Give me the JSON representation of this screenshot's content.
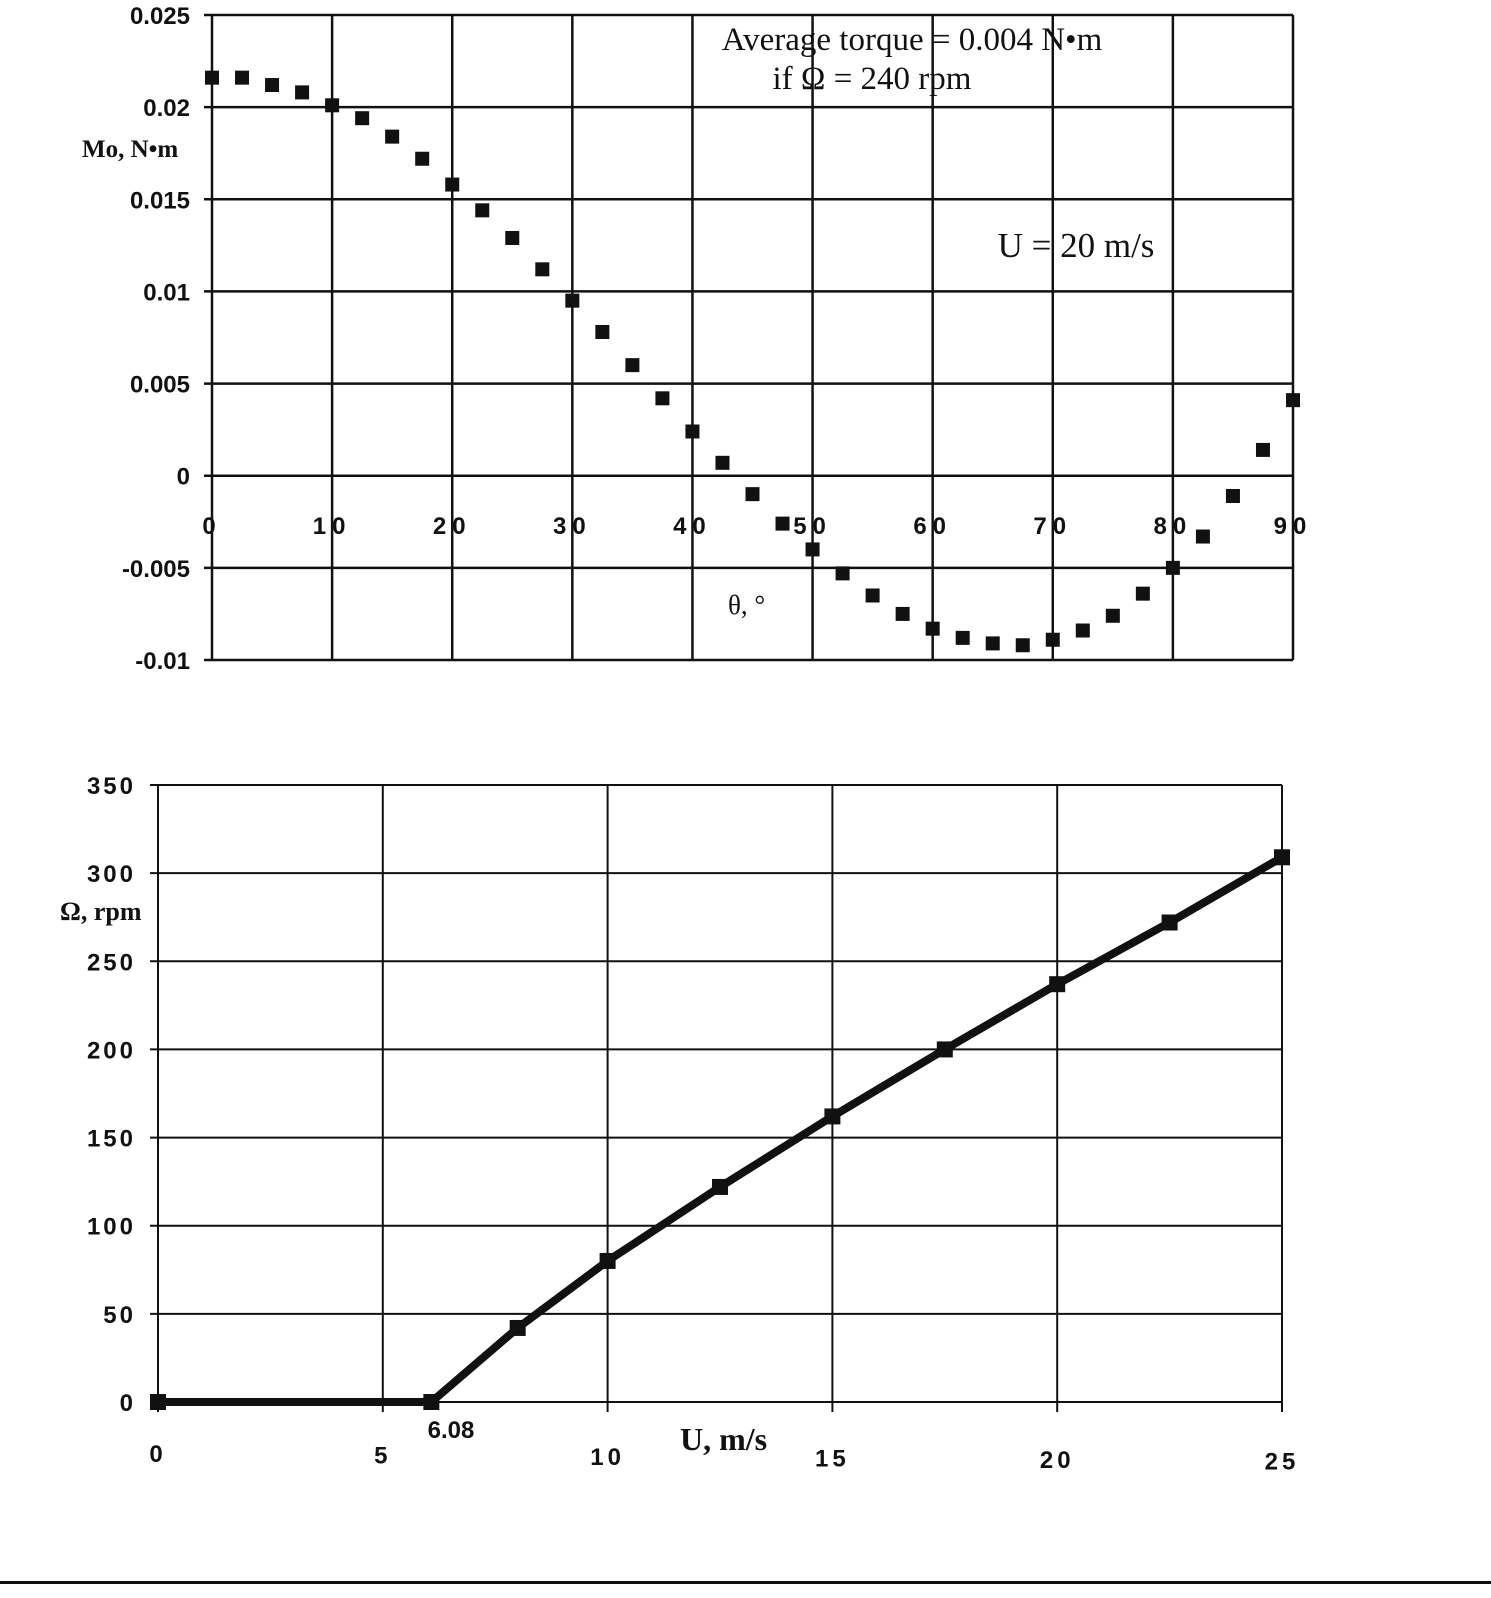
{
  "chart_data": [
    {
      "id": "torque",
      "type": "scatter",
      "title": "",
      "xlabel": "θ, °",
      "ylabel": "Mo, N•m",
      "xlim": [
        0,
        90
      ],
      "ylim": [
        -0.01,
        0.025
      ],
      "xticks": [
        0,
        10,
        20,
        30,
        40,
        50,
        60,
        70,
        80,
        90
      ],
      "yticks": [
        0.025,
        0.02,
        0.015,
        0.01,
        0.005,
        0,
        -0.005,
        -0.01
      ],
      "ytick_labels": [
        "0.025",
        "0.02",
        "0.015",
        "0.01",
        "0.005",
        "0",
        "-0.005",
        "-0.01"
      ],
      "grid": true,
      "marker": "square",
      "annotations": [
        "Average torque = 0.004 N•m",
        "if Ω = 240 rpm",
        "U = 20 m/s"
      ],
      "series": [
        {
          "name": "Mo",
          "x": [
            0,
            2.5,
            5,
            7.5,
            10,
            12.5,
            15,
            17.5,
            20,
            22.5,
            25,
            27.5,
            30,
            32.5,
            35,
            37.5,
            40,
            42.5,
            45,
            47.5,
            50,
            52.5,
            55,
            57.5,
            60,
            62.5,
            65,
            67.5,
            70,
            72.5,
            75,
            77.5,
            80,
            82.5,
            85,
            87.5,
            90
          ],
          "values": [
            0.0216,
            0.0216,
            0.0212,
            0.0208,
            0.0201,
            0.0194,
            0.0184,
            0.0172,
            0.0158,
            0.0144,
            0.0129,
            0.0112,
            0.0095,
            0.0078,
            0.006,
            0.0042,
            0.0024,
            0.0007,
            -0.001,
            -0.0026,
            -0.004,
            -0.0053,
            -0.0065,
            -0.0075,
            -0.0083,
            -0.0088,
            -0.0091,
            -0.0092,
            -0.0089,
            -0.0084,
            -0.0076,
            -0.0064,
            -0.005,
            -0.0033,
            -0.0011,
            0.0014,
            0.0041
          ]
        }
      ]
    },
    {
      "id": "speed",
      "type": "line",
      "title": "",
      "xlabel": "U,  m/s",
      "ylabel": "Ω, rpm",
      "xlim": [
        0,
        25
      ],
      "ylim": [
        0,
        350
      ],
      "xticks": [
        0,
        5,
        10,
        15,
        20,
        25
      ],
      "yticks": [
        350,
        300,
        250,
        200,
        150,
        100,
        50,
        0
      ],
      "grid": true,
      "marker": "square",
      "annotations": [
        "6.08"
      ],
      "series": [
        {
          "name": "Ω",
          "x": [
            0,
            6.08,
            8,
            10,
            12.5,
            15,
            17.5,
            20,
            22.5,
            25
          ],
          "values": [
            0,
            0,
            42,
            80,
            122,
            162,
            200,
            237,
            272,
            309
          ]
        }
      ]
    }
  ]
}
